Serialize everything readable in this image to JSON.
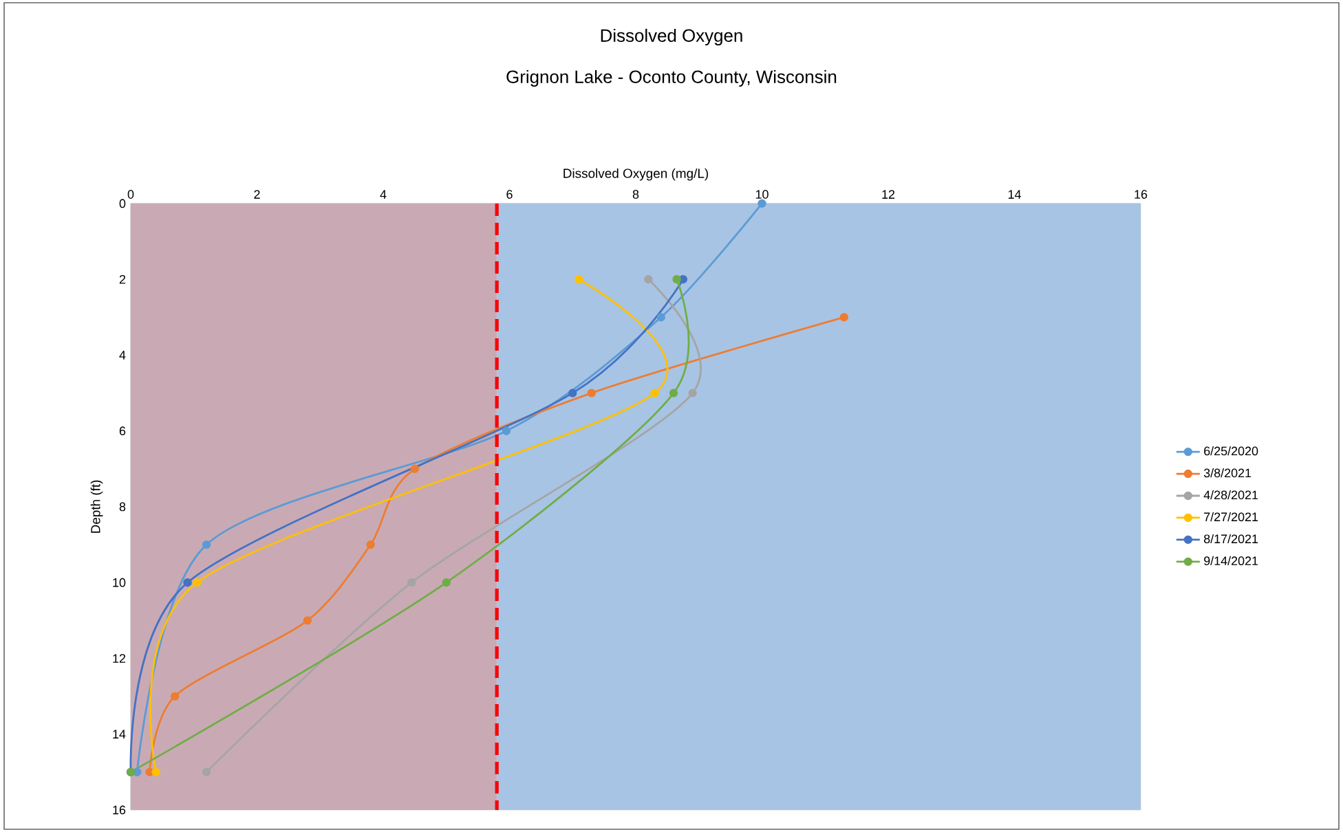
{
  "chart_data": {
    "type": "line",
    "title": "Dissolved Oxygen",
    "subtitle": "Grignon Lake - Oconto County, Wisconsin",
    "xlabel": "Dissolved Oxygen (mg/L)",
    "ylabel": "Depth (ft)",
    "xlim": [
      0,
      16
    ],
    "xticks": [
      0,
      2,
      4,
      6,
      8,
      10,
      12,
      14,
      16
    ],
    "ylim": [
      16,
      0
    ],
    "yticks": [
      0,
      2,
      4,
      6,
      8,
      10,
      12,
      14,
      16
    ],
    "grid": true,
    "legend": "right",
    "marker": "circle",
    "line_style": "solid",
    "series": [
      {
        "name": "6/25/2020",
        "color": "#5b9bd5",
        "x": [
          10,
          8.4,
          5.95,
          1.2,
          0.1
        ],
        "values": [
          0,
          3,
          6,
          9,
          15
        ]
      },
      {
        "name": "3/8/2021",
        "color": "#ed7d31",
        "x": [
          11.3,
          7.3,
          4.5,
          3.8,
          2.8,
          0.7,
          0.3
        ],
        "values": [
          3,
          5,
          7,
          9,
          11,
          13,
          15
        ]
      },
      {
        "name": "4/28/2021",
        "color": "#a5a5a5",
        "x": [
          8.2,
          8.9,
          4.45,
          1.2
        ],
        "values": [
          2,
          5,
          10,
          15
        ]
      },
      {
        "name": "7/27/2021",
        "color": "#ffc000",
        "x": [
          7.1,
          8.3,
          1.05,
          0.4
        ],
        "values": [
          2,
          5,
          10,
          15
        ]
      },
      {
        "name": "8/17/2021",
        "color": "#4472c4",
        "x": [
          8.75,
          7.0,
          0.9,
          0.0
        ],
        "values": [
          2,
          5,
          10,
          15
        ]
      },
      {
        "name": "9/14/2021",
        "color": "#70ad47",
        "x": [
          8.65,
          8.6,
          5.0,
          0.0
        ],
        "values": [
          2,
          5,
          10,
          15
        ]
      }
    ],
    "ref_lines": [
      {
        "axis": "x",
        "value": 5.8,
        "color": "#ff0000",
        "line_style": "dashed"
      }
    ],
    "bands": [
      {
        "axis": "x",
        "from": 0,
        "to": 5.8,
        "color": "#c9aab4"
      },
      {
        "axis": "x",
        "from": 5.8,
        "to": 16,
        "color": "#a8c4e4"
      }
    ]
  }
}
